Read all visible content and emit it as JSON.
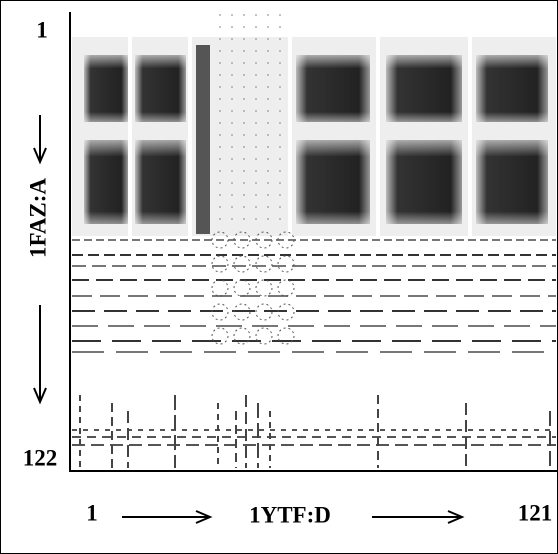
{
  "y_axis": {
    "label": "1FAZ:A",
    "start": "1",
    "end": "122"
  },
  "x_axis": {
    "label": "1YTF:D",
    "start": "1",
    "end": "121"
  }
}
